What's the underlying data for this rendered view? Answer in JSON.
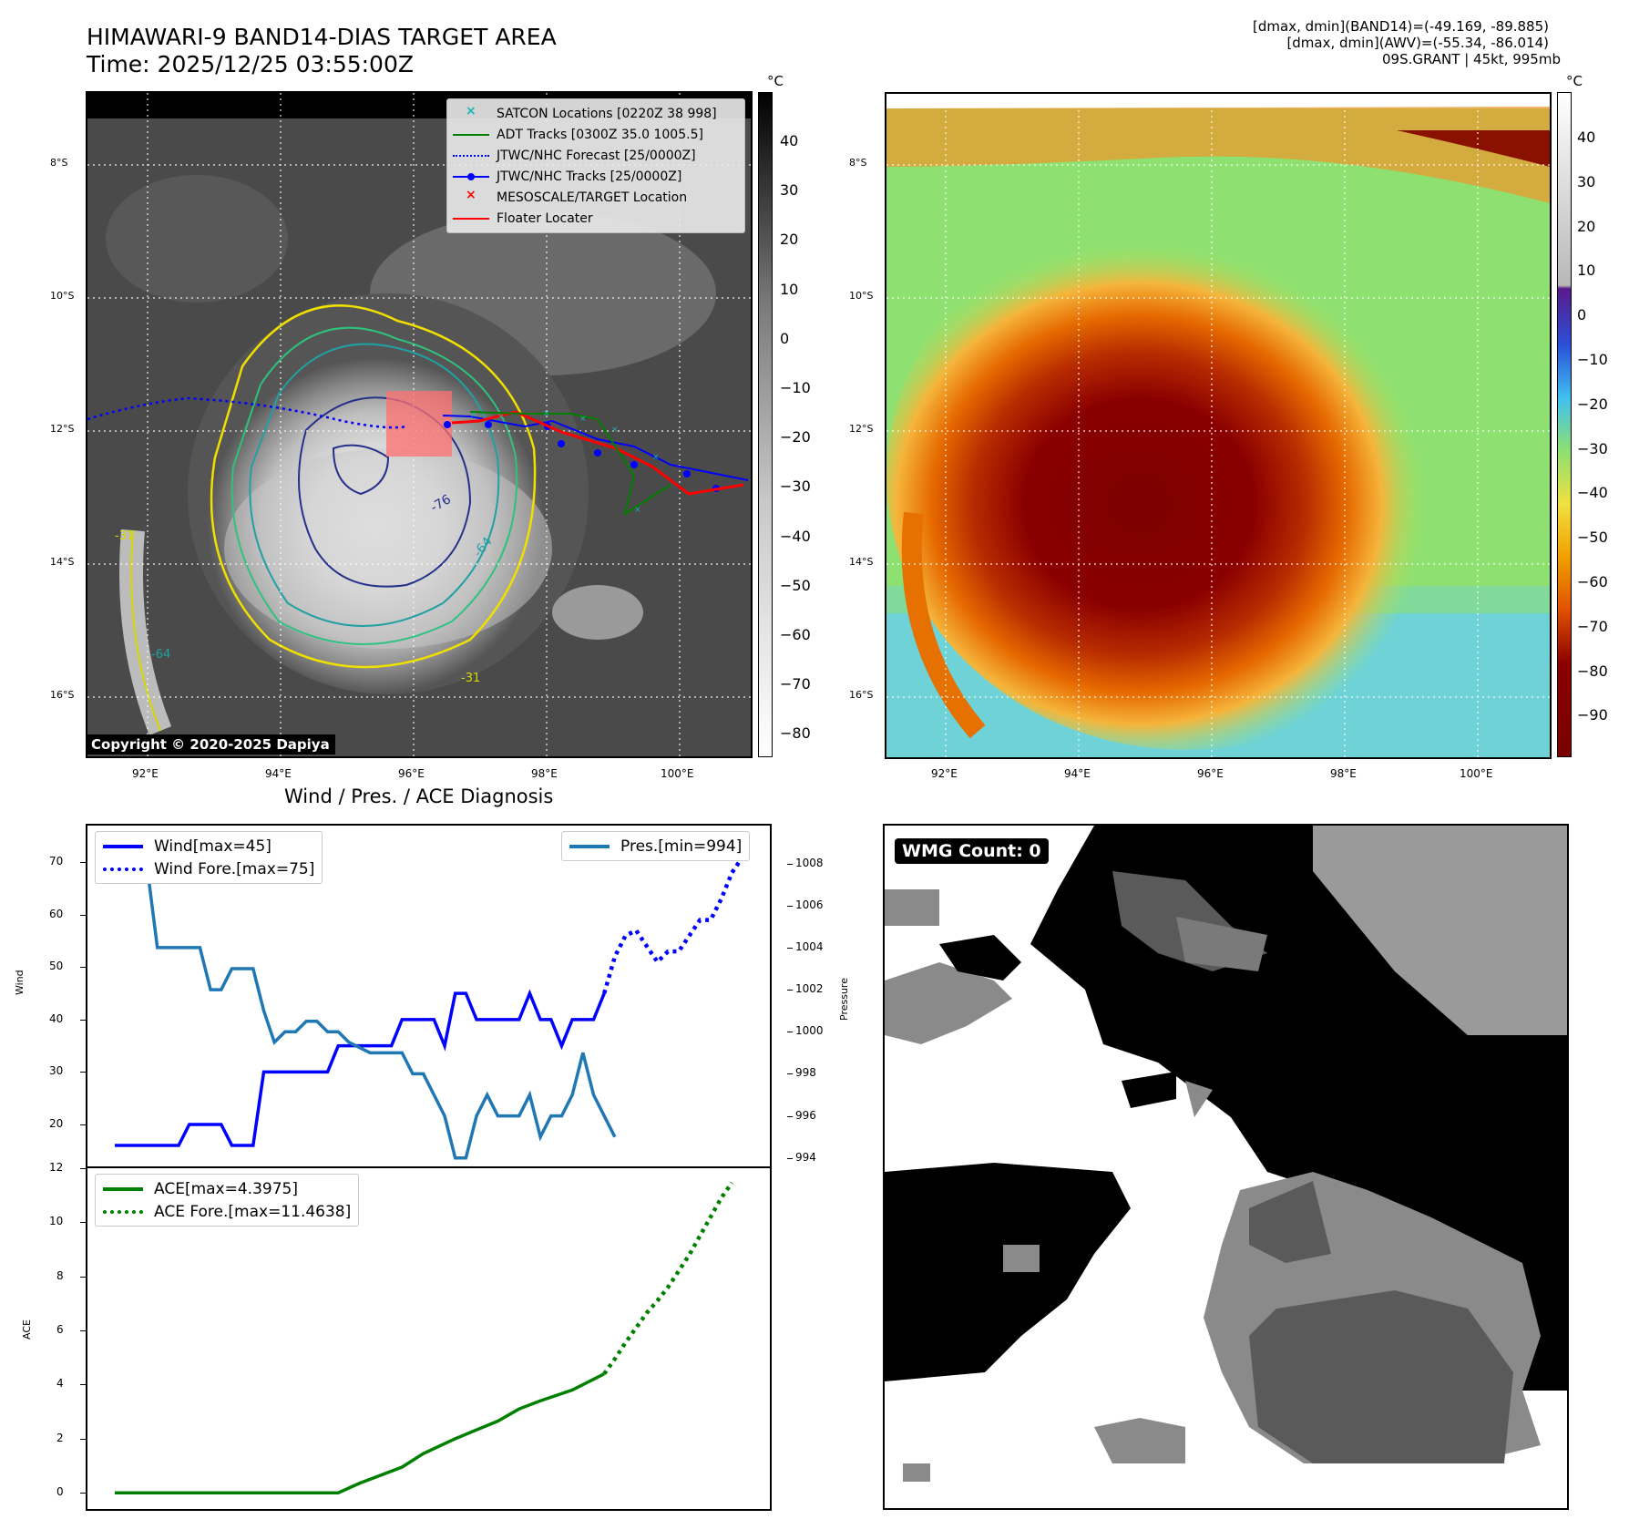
{
  "header": {
    "title_line1": "HIMAWARI-9 BAND14-DIAS TARGET AREA",
    "title_line2": "Time: 2025/12/25 03:55:00Z",
    "info_line1": "[dmax, dmin](BAND14)=(-49.169, -89.885)",
    "info_line2": "[dmax, dmin](AWV)=(-55.34, -86.014)",
    "info_line3": "09S.GRANT | 45kt, 995mb"
  },
  "map": {
    "lat_labels": [
      "8°S",
      "10°S",
      "12°S",
      "14°S",
      "16°S"
    ],
    "lon_labels": [
      "92°E",
      "94°E",
      "96°E",
      "98°E",
      "100°E"
    ],
    "contour_labels": [
      "-76",
      "-64",
      "-31",
      "-64",
      "-31"
    ],
    "copyright": "Copyright © 2020-2025 Dapiya",
    "legend": [
      {
        "label": "SATCON Locations [0220Z 38 998]",
        "color": "#19b4b4"
      },
      {
        "label": "ADT Tracks [0300Z 35.0 1005.5]",
        "color": "#008000"
      },
      {
        "label": "JTWC/NHC Forecast [25/0000Z]",
        "color": "#0000ff"
      },
      {
        "label": "JTWC/NHC Tracks [25/0000Z]",
        "color": "#0000ff"
      },
      {
        "label": "MESOSCALE/TARGET Location",
        "color": "#ff0000"
      },
      {
        "label": "Floater Locater",
        "color": "#ff0000"
      }
    ]
  },
  "colorbar_left": {
    "unit": "°C",
    "ticks": [
      "40",
      "30",
      "20",
      "10",
      "0",
      "−10",
      "−20",
      "−30",
      "−40",
      "−50",
      "−60",
      "−70",
      "−80"
    ]
  },
  "colorbar_right": {
    "unit": "°C",
    "ticks": [
      "40",
      "30",
      "20",
      "10",
      "0",
      "−10",
      "−20",
      "−30",
      "−40",
      "−50",
      "−60",
      "−70",
      "−80",
      "−90"
    ]
  },
  "diagnosis": {
    "title": "Wind / Pres. / ACE Diagnosis"
  },
  "wmg": {
    "label": "WMG Count: 0"
  },
  "chart_data": [
    {
      "type": "line",
      "title": "Wind / Pres. / ACE Diagnosis",
      "ylabel": "Wind",
      "ylabel_right": "Pressure",
      "ylim": [
        12,
        77
      ],
      "ylim_right": [
        993.6,
        1009.8
      ],
      "yticks": [
        20,
        30,
        40,
        50,
        60,
        70
      ],
      "yticks_right": [
        994,
        996,
        998,
        1000,
        1002,
        1004,
        1006,
        1008
      ],
      "x_count": 60,
      "series": [
        {
          "name": "Wind[max=45]",
          "axis": "left",
          "color": "#0000ff",
          "style": "solid",
          "values": [
            [
              0,
              16
            ],
            [
              6,
              16
            ],
            [
              7,
              20
            ],
            [
              10,
              20
            ],
            [
              11,
              16
            ],
            [
              13,
              16
            ],
            [
              14,
              30
            ],
            [
              20,
              30
            ],
            [
              21,
              35
            ],
            [
              26,
              35
            ],
            [
              27,
              40
            ],
            [
              30,
              40
            ],
            [
              31,
              35
            ],
            [
              32,
              45
            ],
            [
              33,
              45
            ],
            [
              34,
              40
            ],
            [
              38,
              40
            ],
            [
              39,
              45
            ],
            [
              40,
              40
            ],
            [
              41,
              40
            ],
            [
              42,
              35
            ],
            [
              43,
              40
            ],
            [
              45,
              40
            ],
            [
              46,
              45
            ]
          ]
        },
        {
          "name": "Wind Fore.[max=75]",
          "axis": "left",
          "color": "#0000ff",
          "style": "dotted",
          "values": [
            [
              46,
              45
            ],
            [
              47,
              52
            ],
            [
              48,
              56
            ],
            [
              49,
              57
            ],
            [
              50,
              54
            ],
            [
              51,
              51
            ],
            [
              52,
              53
            ],
            [
              53,
              53
            ],
            [
              54,
              56
            ],
            [
              55,
              59
            ],
            [
              56,
              59
            ],
            [
              57,
              63
            ],
            [
              58,
              68
            ],
            [
              59,
              71
            ]
          ]
        },
        {
          "name": "Pres.[min=994]",
          "axis": "right",
          "color": "#1f77b4",
          "style": "solid",
          "values": [
            [
              2,
              1008
            ],
            [
              3,
              1008
            ],
            [
              4,
              1004
            ],
            [
              8,
              1004
            ],
            [
              9,
              1002
            ],
            [
              10,
              1002
            ],
            [
              11,
              1003
            ],
            [
              13,
              1003
            ],
            [
              14,
              1001
            ],
            [
              15,
              999.5
            ],
            [
              16,
              1000
            ],
            [
              17,
              1000
            ],
            [
              18,
              1000.5
            ],
            [
              19,
              1000.5
            ],
            [
              20,
              1000
            ],
            [
              21,
              1000
            ],
            [
              22,
              999.5
            ],
            [
              24,
              999
            ],
            [
              27,
              999
            ],
            [
              28,
              998
            ],
            [
              29,
              998
            ],
            [
              30,
              997
            ],
            [
              31,
              996
            ],
            [
              32,
              994
            ],
            [
              33,
              994
            ],
            [
              34,
              996
            ],
            [
              35,
              997
            ],
            [
              36,
              996
            ],
            [
              38,
              996
            ],
            [
              39,
              997
            ],
            [
              40,
              995
            ],
            [
              41,
              996
            ],
            [
              42,
              996
            ],
            [
              43,
              997
            ],
            [
              44,
              999
            ],
            [
              45,
              997
            ],
            [
              46,
              996
            ],
            [
              47,
              995
            ]
          ]
        }
      ],
      "legend_left": [
        "Wind[max=45]",
        "Wind Fore.[max=75]"
      ],
      "legend_right": [
        "Pres.[min=994]"
      ]
    },
    {
      "type": "line",
      "ylabel": "ACE",
      "ylim": [
        -0.6,
        12
      ],
      "yticks": [
        0,
        2,
        4,
        6,
        8,
        10,
        12
      ],
      "series": [
        {
          "name": "ACE[max=4.3975]",
          "color": "#008000",
          "style": "solid",
          "values": [
            [
              0,
              0
            ],
            [
              14,
              0
            ],
            [
              21,
              0
            ],
            [
              23,
              0.35
            ],
            [
              27,
              0.95
            ],
            [
              29,
              1.45
            ],
            [
              32,
              2.0
            ],
            [
              36,
              2.65
            ],
            [
              38,
              3.1
            ],
            [
              40,
              3.4
            ],
            [
              43,
              3.8
            ],
            [
              46,
              4.3975
            ]
          ]
        },
        {
          "name": "ACE Fore.[max=11.4638]",
          "color": "#008000",
          "style": "dotted",
          "values": [
            [
              46,
              4.3975
            ],
            [
              47,
              4.95
            ],
            [
              48,
              5.55
            ],
            [
              49,
              6.1
            ],
            [
              50,
              6.65
            ],
            [
              51,
              7.1
            ],
            [
              52,
              7.6
            ],
            [
              53,
              8.2
            ],
            [
              54,
              8.8
            ],
            [
              55,
              9.5
            ],
            [
              56,
              10.2
            ],
            [
              57,
              10.9
            ],
            [
              58,
              11.4638
            ]
          ]
        }
      ],
      "legend": [
        "ACE[max=4.3975]",
        "ACE Fore.[max=11.4638]"
      ]
    }
  ]
}
